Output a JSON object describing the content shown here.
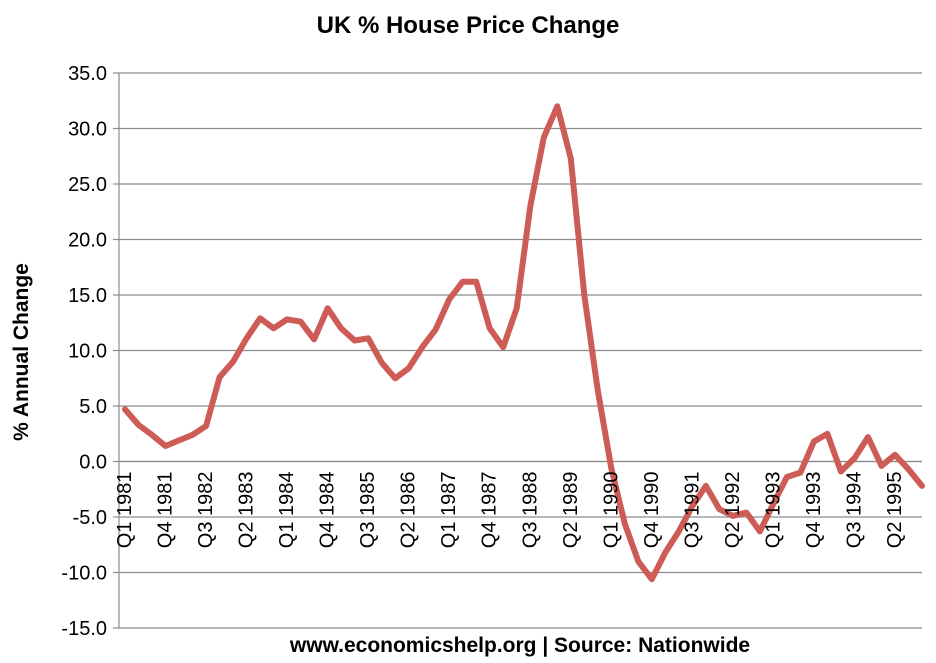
{
  "chart_data": {
    "type": "line",
    "title": "UK % House Price Change",
    "xlabel": "www.economicshelp.org | Source: Nationwide",
    "ylabel": "% Annual Change",
    "ylim": [
      -15,
      35
    ],
    "y_ticks": [
      35.0,
      30.0,
      25.0,
      20.0,
      15.0,
      10.0,
      5.0,
      0.0,
      -5.0,
      -10.0,
      -15.0
    ],
    "y_tick_labels": [
      "35.0",
      "30.0",
      "25.0",
      "20.0",
      "15.0",
      "10.0",
      "5.0",
      "0.0",
      "-5.0",
      "-10.0",
      "-15.0"
    ],
    "x_tick_labels": [
      {
        "index": 0,
        "label": "Q1 1981"
      },
      {
        "index": 3,
        "label": "Q4 1981"
      },
      {
        "index": 6,
        "label": "Q3 1982"
      },
      {
        "index": 9,
        "label": "Q2 1983"
      },
      {
        "index": 12,
        "label": "Q1 1984"
      },
      {
        "index": 15,
        "label": "Q4 1984"
      },
      {
        "index": 18,
        "label": "Q3 1985"
      },
      {
        "index": 21,
        "label": "Q2 1986"
      },
      {
        "index": 24,
        "label": "Q1 1987"
      },
      {
        "index": 27,
        "label": "Q4 1987"
      },
      {
        "index": 30,
        "label": "Q3 1988"
      },
      {
        "index": 33,
        "label": "Q2 1989"
      },
      {
        "index": 36,
        "label": "Q1 1990"
      },
      {
        "index": 39,
        "label": "Q4 1990"
      },
      {
        "index": 42,
        "label": "Q3 1991"
      },
      {
        "index": 45,
        "label": "Q2 1992"
      },
      {
        "index": 48,
        "label": "Q1 1993"
      },
      {
        "index": 51,
        "label": "Q4 1993"
      },
      {
        "index": 54,
        "label": "Q3 1994"
      },
      {
        "index": 57,
        "label": "Q2 1995"
      }
    ],
    "series": [
      {
        "name": "UK % House Price Change",
        "color": "#cd5c57",
        "values": [
          4.7,
          3.3,
          2.4,
          1.4,
          1.9,
          2.4,
          3.2,
          7.6,
          9.0,
          11.1,
          12.9,
          12.0,
          12.8,
          12.6,
          11.0,
          13.8,
          12.0,
          10.9,
          11.1,
          8.9,
          7.5,
          8.4,
          10.3,
          11.9,
          14.6,
          16.2,
          16.2,
          12.0,
          10.3,
          13.8,
          23.0,
          29.2,
          32.0,
          27.3,
          15.0,
          6.4,
          -0.6,
          -5.6,
          -9.0,
          -10.6,
          -8.2,
          -6.3,
          -4.0,
          -2.2,
          -4.3,
          -4.9,
          -4.6,
          -6.3,
          -3.8,
          -1.4,
          -1.0,
          1.8,
          2.5,
          -0.9,
          0.3,
          2.2,
          -0.4,
          0.6,
          -0.7,
          -2.2
        ]
      }
    ]
  }
}
